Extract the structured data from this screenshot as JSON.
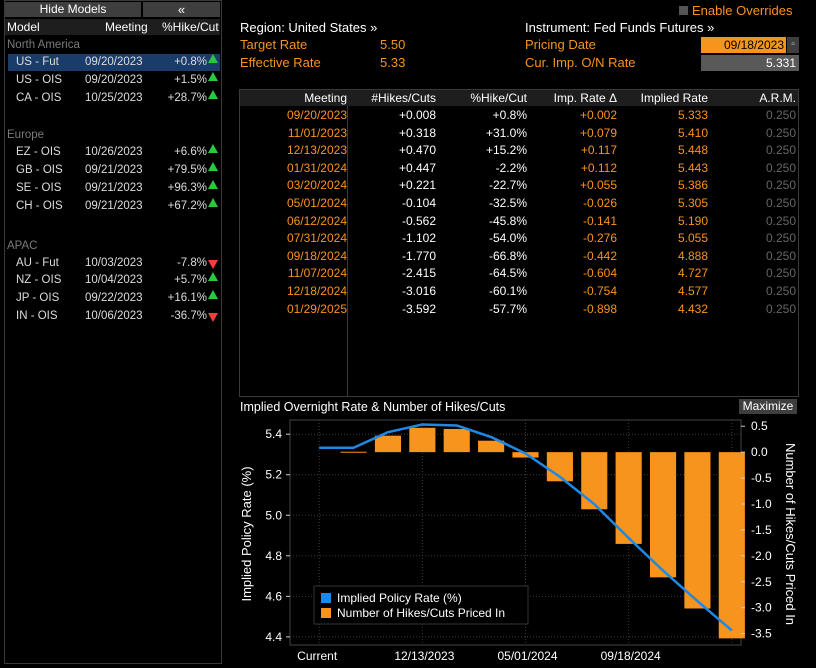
{
  "left_panel": {
    "hide_models_label": "Hide Models",
    "collapse_glyph": "«",
    "headers": {
      "model": "Model",
      "meeting": "Meeting",
      "pct": "%Hike/Cut"
    },
    "sections": [
      {
        "name": "North America",
        "rows": [
          {
            "model": "US - Fut",
            "meeting": "09/20/2023",
            "pct": "+0.8%",
            "dir": "up",
            "selected": true
          },
          {
            "model": "US - OIS",
            "meeting": "09/20/2023",
            "pct": "+1.5%",
            "dir": "up"
          },
          {
            "model": "CA - OIS",
            "meeting": "10/25/2023",
            "pct": "+28.7%",
            "dir": "up"
          }
        ]
      },
      {
        "name": "Europe",
        "rows": [
          {
            "model": "EZ - OIS",
            "meeting": "10/26/2023",
            "pct": "+6.6%",
            "dir": "up"
          },
          {
            "model": "GB - OIS",
            "meeting": "09/21/2023",
            "pct": "+79.5%",
            "dir": "up"
          },
          {
            "model": "SE - OIS",
            "meeting": "09/21/2023",
            "pct": "+96.3%",
            "dir": "up"
          },
          {
            "model": "CH - OIS",
            "meeting": "09/21/2023",
            "pct": "+67.2%",
            "dir": "up"
          }
        ]
      },
      {
        "name": "APAC",
        "rows": [
          {
            "model": "AU - Fut",
            "meeting": "10/03/2023",
            "pct": "-7.8%",
            "dir": "down"
          },
          {
            "model": "NZ - OIS",
            "meeting": "10/04/2023",
            "pct": "+5.7%",
            "dir": "up"
          },
          {
            "model": "JP - OIS",
            "meeting": "09/22/2023",
            "pct": "+16.1%",
            "dir": "up"
          },
          {
            "model": "IN - OIS",
            "meeting": "10/06/2023",
            "pct": "-36.7%",
            "dir": "down"
          }
        ]
      }
    ]
  },
  "info": {
    "enable_overrides_label": "Enable Overrides",
    "region_label": "Region: United States »",
    "instrument_label": "Instrument: Fed Funds Futures »",
    "target_rate_label": "Target Rate",
    "target_rate_value": "5.50",
    "effective_rate_label": "Effective Rate",
    "effective_rate_value": "5.33",
    "pricing_date_label": "Pricing Date",
    "pricing_date_value": "09/18/2023",
    "cur_imp_label": "Cur. Imp. O/N Rate",
    "cur_imp_value": "5.331"
  },
  "table": {
    "headers": [
      "Meeting",
      "#Hikes/Cuts",
      "%Hike/Cut",
      "Imp. Rate Δ",
      "Implied Rate",
      "A.R.M."
    ],
    "rows": [
      [
        "09/20/2023",
        "+0.008",
        "+0.8%",
        "+0.002",
        "5.333",
        "0.250"
      ],
      [
        "11/01/2023",
        "+0.318",
        "+31.0%",
        "+0.079",
        "5.410",
        "0.250"
      ],
      [
        "12/13/2023",
        "+0.470",
        "+15.2%",
        "+0.117",
        "5.448",
        "0.250"
      ],
      [
        "01/31/2024",
        "+0.447",
        "-2.2%",
        "+0.112",
        "5.443",
        "0.250"
      ],
      [
        "03/20/2024",
        "+0.221",
        "-22.7%",
        "+0.055",
        "5.386",
        "0.250"
      ],
      [
        "05/01/2024",
        "-0.104",
        "-32.5%",
        "-0.026",
        "5.305",
        "0.250"
      ],
      [
        "06/12/2024",
        "-0.562",
        "-45.8%",
        "-0.141",
        "5.190",
        "0.250"
      ],
      [
        "07/31/2024",
        "-1.102",
        "-54.0%",
        "-0.276",
        "5.055",
        "0.250"
      ],
      [
        "09/18/2024",
        "-1.770",
        "-66.8%",
        "-0.442",
        "4.888",
        "0.250"
      ],
      [
        "11/07/2024",
        "-2.415",
        "-64.5%",
        "-0.604",
        "4.727",
        "0.250"
      ],
      [
        "12/18/2024",
        "-3.016",
        "-60.1%",
        "-0.754",
        "4.577",
        "0.250"
      ],
      [
        "01/29/2025",
        "-3.592",
        "-57.7%",
        "-0.898",
        "4.432",
        "0.250"
      ]
    ]
  },
  "chart_title": "Implied Overnight Rate & Number of Hikes/Cuts",
  "maximize_label": "Maximize",
  "colors": {
    "orange": "#f7941d",
    "blue": "#1e88e5",
    "selected_row": "#1a3c6a",
    "up": "#27c93f",
    "down": "#ff3b3b"
  },
  "chart_data": {
    "type": "bar",
    "x_tick_labels": [
      "Current",
      "12/13/2023",
      "05/01/2024",
      "09/18/2024"
    ],
    "ylabel_left": "Implied Policy Rate (%)",
    "ylabel_right": "Number of Hikes/Cuts Priced In",
    "yticks_left": [
      4.4,
      4.6,
      4.8,
      5.0,
      5.2,
      5.4
    ],
    "yticks_right": [
      0.5,
      0.0,
      -0.5,
      -1.0,
      -1.5,
      -2.0,
      -2.5,
      -3.0,
      -3.5
    ],
    "ylim_left": [
      4.36,
      5.47
    ],
    "ylim_right": [
      -3.72,
      0.62
    ],
    "legend": [
      "Implied Policy Rate (%)",
      "Number of Hikes/Cuts Priced In"
    ],
    "legend_position": "bottom-left",
    "bars": [
      0.008,
      0.318,
      0.47,
      0.447,
      0.221,
      -0.104,
      -0.562,
      -1.102,
      -1.77,
      -2.415,
      -3.016,
      -3.592
    ],
    "line": [
      5.333,
      5.333,
      5.41,
      5.448,
      5.443,
      5.386,
      5.305,
      5.19,
      5.055,
      4.888,
      4.727,
      4.577,
      4.432
    ]
  }
}
